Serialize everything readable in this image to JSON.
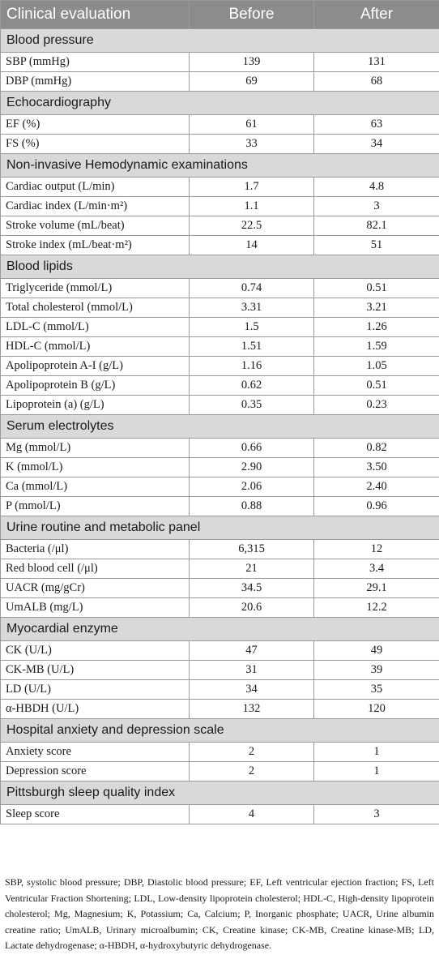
{
  "table": {
    "headers": [
      "Clinical evaluation",
      "Before",
      "After"
    ],
    "sections": [
      {
        "title": "Blood pressure",
        "rows": [
          {
            "label": "SBP (mmHg)",
            "before": "139",
            "after": "131"
          },
          {
            "label": "DBP (mmHg)",
            "before": "69",
            "after": "68"
          }
        ]
      },
      {
        "title": "Echocardiography",
        "rows": [
          {
            "label": "EF (%)",
            "before": "61",
            "after": "63"
          },
          {
            "label": "FS (%)",
            "before": "33",
            "after": "34"
          }
        ]
      },
      {
        "title": "Non-invasive Hemodynamic examinations",
        "rows": [
          {
            "label": "Cardiac output (L/min)",
            "before": "1.7",
            "after": "4.8"
          },
          {
            "label": "Cardiac index (L/min·m²)",
            "before": "1.1",
            "after": "3"
          },
          {
            "label": "Stroke volume (mL/beat)",
            "before": "22.5",
            "after": "82.1"
          },
          {
            "label": "Stroke index (mL/beat·m²)",
            "before": "14",
            "after": "51"
          }
        ]
      },
      {
        "title": "Blood lipids",
        "rows": [
          {
            "label": "Triglyceride (mmol/L)",
            "before": "0.74",
            "after": "0.51"
          },
          {
            "label": "Total cholesterol (mmol/L)",
            "before": "3.31",
            "after": "3.21"
          },
          {
            "label": "LDL-C (mmol/L)",
            "before": "1.5",
            "after": "1.26"
          },
          {
            "label": "HDL-C (mmol/L)",
            "before": "1.51",
            "after": "1.59"
          },
          {
            "label": "Apolipoprotein A-I (g/L)",
            "before": "1.16",
            "after": "1.05"
          },
          {
            "label": "Apolipoprotein B (g/L)",
            "before": "0.62",
            "after": "0.51"
          },
          {
            "label": "Lipoprotein (a) (g/L)",
            "before": "0.35",
            "after": "0.23"
          }
        ]
      },
      {
        "title": "Serum electrolytes",
        "rows": [
          {
            "label": "Mg (mmol/L)",
            "before": "0.66",
            "after": "0.82"
          },
          {
            "label": "K (mmol/L)",
            "before": "2.90",
            "after": "3.50"
          },
          {
            "label": "Ca (mmol/L)",
            "before": "2.06",
            "after": "2.40"
          },
          {
            "label": "P (mmol/L)",
            "before": "0.88",
            "after": "0.96"
          }
        ]
      },
      {
        "title": "Urine routine and metabolic panel",
        "rows": [
          {
            "label": "Bacteria (/μl)",
            "before": "6,315",
            "after": "12"
          },
          {
            "label": "Red blood cell (/μl)",
            "before": "21",
            "after": "3.4"
          },
          {
            "label": "UACR (mg/gCr)",
            "before": "34.5",
            "after": "29.1"
          },
          {
            "label": "UmALB (mg/L)",
            "before": "20.6",
            "after": "12.2"
          }
        ]
      },
      {
        "title": "Myocardial enzyme",
        "rows": [
          {
            "label": "CK (U/L)",
            "before": "47",
            "after": "49"
          },
          {
            "label": "CK-MB (U/L)",
            "before": "31",
            "after": "39"
          },
          {
            "label": "LD (U/L)",
            "before": "34",
            "after": "35"
          },
          {
            "label": "α-HBDH (U/L)",
            "before": "132",
            "after": "120"
          }
        ]
      },
      {
        "title": "Hospital anxiety and depression scale",
        "rows": [
          {
            "label": "Anxiety score",
            "before": "2",
            "after": "1"
          },
          {
            "label": "Depression score",
            "before": "2",
            "after": "1"
          }
        ]
      },
      {
        "title": "Pittsburgh sleep quality index",
        "rows": [
          {
            "label": "Sleep score",
            "before": "4",
            "after": "3"
          }
        ]
      }
    ]
  },
  "footnote": "SBP, systolic blood pressure; DBP, Diastolic blood pressure; EF, Left ventricular ejection fraction; FS, Left Ventricular Fraction Shortening; LDL, Low-density lipoprotein cholesterol; HDL-C, High-density lipoprotein cholesterol; Mg, Magnesium; K, Potassium; Ca, Calcium; P, Inorganic phosphate; UACR, Urine albumin creatine ratio; UmALB, Urinary microalbumin; CK, Creatine kinase; CK-MB, Creatine kinase-MB; LD, Lactate dehydrogenase; α-HBDH, α-hydroxybutyric dehydrogenase."
}
